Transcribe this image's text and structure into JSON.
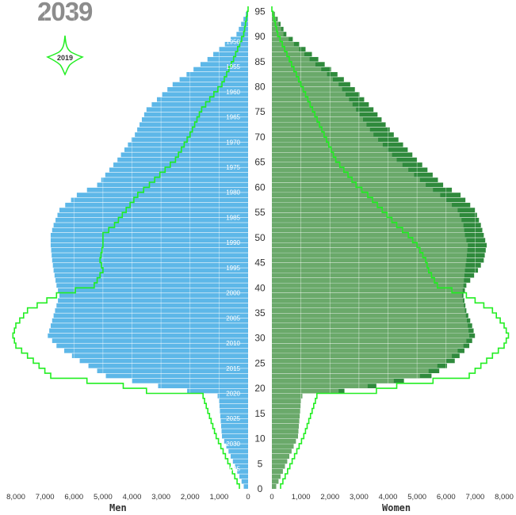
{
  "title_year": "2039",
  "legend": {
    "label": "2019",
    "outline_color": "#22ee22"
  },
  "colors": {
    "men_fill": "#5db7e8",
    "men_dark": "#2b7cc4",
    "women_fill": "#6aa96a",
    "women_dark": "#2f8a3c",
    "outline_2019": "#22ee22",
    "grid": "#ffffff"
  },
  "chart_data": {
    "type": "bar",
    "subtype": "population-pyramid",
    "xlabel_left": "Men",
    "xlabel_right": "Women",
    "x_ticks_left": [
      "8,000",
      "7,000",
      "6,000",
      "5,000",
      "4,000",
      "3,000",
      "2,000",
      "1,000",
      "0"
    ],
    "x_ticks_right": [
      "0",
      "1,000",
      "2,000",
      "3,000",
      "4,000",
      "5,000",
      "6,000",
      "7,000",
      "8,000"
    ],
    "xlim": [
      0,
      8000
    ],
    "age_ticks": [
      "0",
      "5",
      "10",
      "15",
      "20",
      "25",
      "30",
      "35",
      "40",
      "45",
      "50",
      "55",
      "60",
      "65",
      "70",
      "75",
      "80",
      "85",
      "90",
      "95"
    ],
    "birth_year_labels": [
      "1950",
      "1955",
      "1960",
      "1965",
      "1970",
      "1975",
      "1980",
      "1985",
      "1990",
      "1995",
      "2000",
      "2005",
      "2010",
      "2015",
      "2020",
      "2025",
      "2030",
      "2035"
    ],
    "ylim_age": [
      0,
      96
    ],
    "age_key": [
      0,
      10,
      17,
      18,
      19,
      20,
      22,
      25,
      28,
      30,
      32,
      35,
      38,
      40,
      43,
      45,
      48,
      50,
      52,
      55,
      58,
      60,
      65,
      70,
      75,
      80,
      85,
      90,
      95
    ],
    "series": [
      {
        "name": "Men",
        "values": [
          150,
          900,
          1000,
          1050,
          2100,
          3100,
          4900,
          5800,
          6600,
          6900,
          6800,
          6650,
          6500,
          6600,
          6700,
          6750,
          6800,
          6800,
          6700,
          6500,
          5900,
          5200,
          4500,
          3900,
          3500,
          2600,
          1400,
          400,
          0
        ]
      },
      {
        "name": "Women",
        "values": [
          150,
          900,
          1000,
          1050,
          2300,
          3300,
          5100,
          6000,
          6600,
          6800,
          6750,
          6650,
          6550,
          6600,
          6650,
          6700,
          6750,
          6650,
          6600,
          6400,
          5800,
          5300,
          4300,
          3500,
          2900,
          2300,
          1300,
          400,
          0
        ]
      },
      {
        "name": "Women_dark",
        "values": [
          150,
          900,
          1000,
          1050,
          2500,
          3600,
          5500,
          6300,
          6800,
          7000,
          6900,
          6700,
          6600,
          6700,
          7100,
          7300,
          7400,
          7300,
          7200,
          7000,
          6500,
          5900,
          5000,
          4200,
          3500,
          2700,
          1600,
          500,
          0
        ]
      },
      {
        "name": "Men_2019",
        "values": [
          300,
          1100,
          1500,
          1550,
          3500,
          4300,
          6800,
          7400,
          8000,
          8100,
          8000,
          7600,
          6600,
          5300,
          5000,
          5100,
          5000,
          5000,
          4600,
          4200,
          3800,
          3400,
          2500,
          2000,
          1600,
          900,
          500,
          150,
          0
        ]
      },
      {
        "name": "Women_2019",
        "values": [
          300,
          1100,
          1500,
          1550,
          3600,
          4300,
          6800,
          7400,
          8000,
          8150,
          8000,
          7600,
          6700,
          5700,
          5400,
          5300,
          5000,
          4700,
          4300,
          3800,
          3300,
          2900,
          2200,
          1800,
          1400,
          1000,
          600,
          200,
          0
        ]
      }
    ]
  }
}
